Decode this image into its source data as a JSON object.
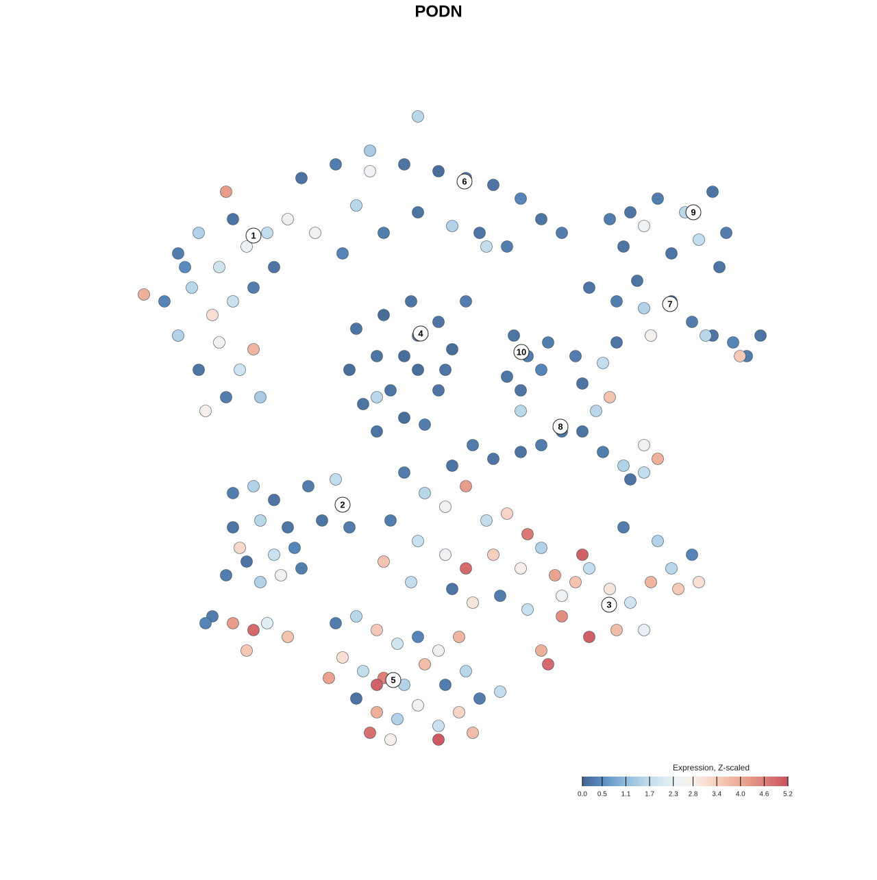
{
  "chart_data": {
    "type": "scatter",
    "title": "PODN",
    "x": [
      -38,
      -35,
      -32,
      -30,
      -28,
      -36,
      -40,
      -43,
      -33,
      -30,
      -27,
      -25,
      -38,
      -35,
      -32,
      -29,
      -27,
      -31,
      -34,
      -26,
      -24,
      -22,
      -31,
      -37,
      -20,
      -15,
      -10,
      -5,
      0,
      4,
      8,
      12,
      15,
      18,
      -12,
      -8,
      -3,
      2,
      6,
      10,
      -18,
      -14,
      -10,
      -3,
      4,
      7,
      -12,
      -8,
      -4,
      0,
      2,
      -3,
      -9,
      -13,
      -11,
      -7,
      -3,
      0,
      -5,
      -9,
      -2,
      -9,
      -5,
      1,
      28,
      32,
      36,
      40,
      42,
      30,
      34,
      38,
      41,
      25,
      27,
      22,
      26,
      30,
      34,
      37,
      40,
      43,
      45,
      47,
      44,
      39,
      29,
      31,
      11,
      13,
      12,
      15,
      12,
      16,
      10,
      20,
      24,
      26,
      21,
      25,
      23,
      21,
      24,
      27,
      30,
      32,
      28,
      30,
      18,
      15,
      12,
      8,
      5,
      2,
      -30,
      -27,
      -24,
      -19,
      -15,
      -22,
      -26,
      -29,
      -31,
      -28,
      -24,
      -21,
      -17,
      -13,
      -26,
      -23,
      -30,
      -20,
      -33,
      -30,
      -27,
      -25,
      -22,
      -28,
      -34,
      -15,
      -12,
      -9,
      -6,
      -3,
      0,
      3,
      -14,
      -11,
      -8,
      -5,
      -2,
      1,
      4,
      -12,
      -9,
      -6,
      -3,
      0,
      3,
      6,
      9,
      -7,
      0,
      5,
      -9,
      -16,
      -10,
      -5,
      -2,
      1,
      4,
      7,
      10,
      13,
      -7,
      -3,
      1,
      4,
      8,
      12,
      15,
      17,
      20,
      18,
      22,
      25,
      28,
      31,
      34,
      37,
      35,
      30,
      26,
      22,
      18,
      15,
      16,
      13,
      9,
      5,
      2,
      -4,
      -8,
      21,
      27,
      32,
      38
    ],
    "y": [
      27,
      30,
      25,
      32,
      28,
      22,
      20,
      21,
      18,
      20,
      22,
      30,
      15,
      10,
      14,
      10,
      13,
      6,
      4,
      6,
      25,
      32,
      36,
      25,
      38,
      40,
      42,
      40,
      39,
      38,
      37,
      35,
      32,
      30,
      34,
      30,
      33,
      31,
      30,
      28,
      30,
      27,
      39,
      47,
      20,
      28,
      16,
      18,
      20,
      17,
      13,
      15,
      12,
      10,
      5,
      7,
      10,
      7,
      3,
      1,
      2,
      6,
      12,
      10,
      33,
      35,
      33,
      36,
      30,
      31,
      27,
      29,
      25,
      32,
      28,
      22,
      20,
      19,
      20,
      17,
      15,
      14,
      12,
      15,
      12,
      15,
      23,
      15,
      15,
      12,
      7,
      10,
      4,
      14,
      9,
      12,
      11,
      14,
      8,
      6,
      4,
      1,
      -2,
      -4,
      -1,
      -3,
      -6,
      -5,
      1,
      -1,
      -2,
      -3,
      -1,
      -4,
      -8,
      -7,
      -9,
      -7,
      -6,
      -13,
      -12,
      -16,
      -20,
      -18,
      -17,
      -16,
      -12,
      -13,
      -21,
      -20,
      -13,
      -19,
      -26,
      -27,
      -28,
      -27,
      -29,
      -31,
      -27,
      -27,
      -26,
      -28,
      -30,
      -29,
      -31,
      -29,
      -32,
      -34,
      -35,
      -36,
      -33,
      -36,
      -34,
      -38,
      -40,
      -41,
      -39,
      -42,
      -40,
      -38,
      -37,
      -44,
      -44,
      -43,
      -36,
      -35,
      -43,
      -5,
      -8,
      -10,
      -7,
      -12,
      -11,
      -14,
      -12,
      -15,
      -17,
      -19,
      -17,
      -19,
      -16,
      -20,
      -21,
      -23,
      -19,
      -22,
      -24,
      -21,
      -19,
      -17,
      -22,
      -28,
      -28,
      -29,
      -26,
      -31,
      -33,
      -25,
      -23,
      -24,
      -22,
      -21,
      -18,
      -17,
      -13,
      -15,
      -21
    ],
    "values": [
      0.3,
      1.5,
      1.9,
      0.2,
      2.4,
      1.6,
      0.4,
      3.9,
      3.1,
      1.8,
      0.3,
      1.7,
      1.5,
      0.2,
      2.6,
      1.9,
      3.8,
      0.3,
      2.7,
      1.4,
      0.2,
      2.6,
      4.2,
      0.5,
      0.2,
      0.3,
      1.4,
      0.2,
      0.1,
      0.3,
      0.2,
      0.4,
      0.2,
      0.3,
      1.6,
      0.3,
      0.2,
      1.5,
      0.2,
      0.3,
      2.6,
      0.4,
      2.5,
      1.6,
      0.3,
      1.7,
      0.2,
      0.1,
      0.2,
      0.2,
      0.1,
      0.3,
      0.2,
      0.1,
      0.2,
      0.2,
      0.1,
      0.2,
      0.1,
      0.2,
      0.3,
      1.6,
      0.1,
      0.2,
      0.2,
      0.3,
      1.6,
      0.2,
      0.3,
      2.5,
      0.2,
      1.7,
      0.2,
      0.3,
      0.2,
      0.2,
      0.3,
      1.5,
      0.2,
      0.3,
      0.2,
      0.4,
      0.3,
      0.2,
      3.5,
      1.6,
      0.2,
      2.7,
      0.2,
      0.3,
      0.2,
      0.4,
      1.6,
      0.3,
      0.2,
      0.3,
      1.7,
      0.2,
      0.2,
      3.6,
      1.6,
      0.2,
      0.3,
      1.5,
      2.6,
      3.9,
      0.2,
      1.7,
      0.2,
      0.3,
      0.2,
      0.2,
      0.3,
      0.2,
      0.3,
      1.5,
      0.2,
      0.3,
      1.7,
      0.2,
      1.6,
      3.2,
      0.3,
      0.2,
      1.8,
      0.4,
      0.2,
      0.3,
      1.5,
      2.6,
      0.2,
      0.3,
      0.3,
      4.2,
      4.9,
      2.2,
      3.6,
      3.5,
      0.4,
      0.3,
      1.6,
      3.5,
      1.9,
      0.4,
      2.5,
      3.8,
      3.1,
      1.7,
      4.6,
      1.5,
      3.7,
      0.3,
      1.6,
      0.2,
      3.9,
      1.5,
      2.6,
      1.8,
      3.3,
      0.3,
      1.7,
      2.8,
      5.1,
      3.7,
      5.0,
      4.1,
      4.8,
      0.3,
      1.6,
      2.6,
      4.2,
      1.7,
      3.3,
      4.7,
      0.3,
      1.8,
      2.5,
      4.9,
      3.4,
      2.8,
      1.5,
      4.1,
      3.6,
      2.5,
      1.7,
      3.0,
      1.9,
      3.8,
      1.6,
      0.4,
      3.5,
      2.3,
      3.7,
      5.0,
      4.4,
      3.9,
      4.9,
      1.8,
      0.3,
      3.0,
      0.2,
      1.7,
      3.6,
      5.0,
      0.3,
      1.5,
      3.1
    ],
    "xlim": [
      -45,
      50
    ],
    "ylim": [
      -46,
      47
    ],
    "clusters": [
      {
        "label": "1",
        "x": -27,
        "y": 29.6
      },
      {
        "label": "6",
        "x": 3.8,
        "y": 37.5
      },
      {
        "label": "4",
        "x": -2.6,
        "y": 15.3
      },
      {
        "label": "9",
        "x": 37.2,
        "y": 33
      },
      {
        "label": "7",
        "x": 33.8,
        "y": 19.6
      },
      {
        "label": "10",
        "x": 12.1,
        "y": 12.6
      },
      {
        "label": "8",
        "x": 17.8,
        "y": 1.7
      },
      {
        "label": "2",
        "x": -14,
        "y": -9.7
      },
      {
        "label": "3",
        "x": 24.9,
        "y": -24.3
      },
      {
        "label": "5",
        "x": -6.6,
        "y": -35.3
      }
    ],
    "colorbar": {
      "title": "Expression, Z-scaled",
      "lim": [
        0,
        5.2
      ],
      "ticks": [
        {
          "value": 0,
          "label": "0.0"
        },
        0.5,
        1.1,
        1.7,
        2.3,
        2.8,
        3.4,
        {
          "value": 4,
          "label": "4.0"
        },
        4.6,
        5.2
      ],
      "colors": [
        "#45668f",
        "#5a8cc0",
        "#8fbbdc",
        "#c3ddec",
        "#e9f1f6",
        "#f8efea",
        "#f7cfbd",
        "#ecaa92",
        "#dd8078",
        "#c9525f"
      ]
    }
  }
}
